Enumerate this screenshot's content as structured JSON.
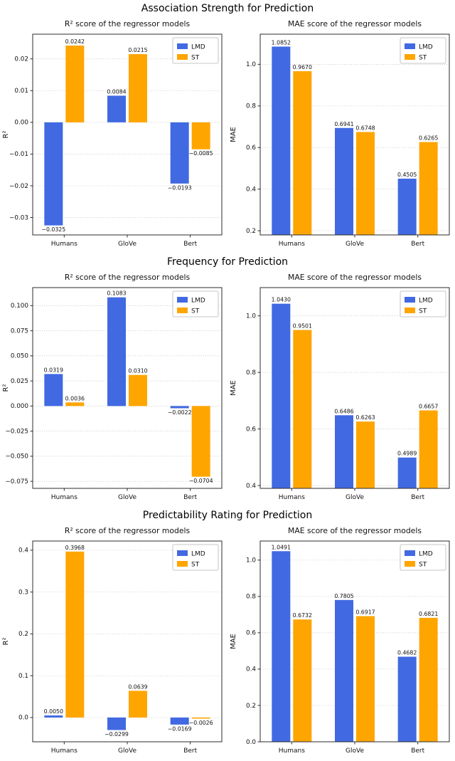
{
  "rows": [
    {
      "title": "Association Strength for Prediction"
    },
    {
      "title": "Frequency for Prediction"
    },
    {
      "title": "Predictability Rating for Prediction"
    }
  ],
  "legend": {
    "entries": [
      "LMD",
      "ST"
    ],
    "position": "upper right"
  },
  "colors": {
    "LMD": "#4169e1",
    "ST": "#ffa500"
  },
  "chart_data": [
    {
      "type": "bar",
      "row_title": "Association Strength for Prediction",
      "title": "R² score of the regressor models",
      "ylabel": "R²",
      "categories": [
        "Humans",
        "GloVe",
        "Bert"
      ],
      "series": [
        {
          "name": "LMD",
          "color": "#4169e1",
          "values": [
            -0.0325,
            0.0084,
            -0.0193
          ]
        },
        {
          "name": "ST",
          "color": "#ffa500",
          "values": [
            0.0242,
            0.0215,
            -0.0085
          ]
        }
      ],
      "ylim": [
        -0.0355,
        0.0278
      ],
      "yticks": [
        0.02,
        0.01,
        0.0,
        -0.01,
        -0.02,
        -0.03
      ],
      "ytick_labels": [
        "0.02",
        "0.01",
        "0.00",
        "−0.01",
        "−0.02",
        "−0.03"
      ],
      "grid": "dotted-horizontal",
      "legend_position": "upper right"
    },
    {
      "type": "bar",
      "row_title": "Association Strength for Prediction",
      "title": "MAE score of the regressor models",
      "ylabel": "MAE",
      "categories": [
        "Humans",
        "GloVe",
        "Bert"
      ],
      "series": [
        {
          "name": "LMD",
          "color": "#4169e1",
          "values": [
            1.0852,
            0.6941,
            0.4505
          ]
        },
        {
          "name": "ST",
          "color": "#ffa500",
          "values": [
            0.967,
            0.6748,
            0.6265
          ]
        }
      ],
      "ylim": [
        0.18,
        1.145
      ],
      "yticks": [
        1.0,
        0.8,
        0.6,
        0.4,
        0.2
      ],
      "ytick_labels": [
        "1.0",
        "0.8",
        "0.6",
        "0.4",
        "0.2"
      ],
      "grid": "dotted-horizontal",
      "legend_position": "upper right"
    },
    {
      "type": "bar",
      "row_title": "Frequency for Prediction",
      "title": "R² score of the regressor models",
      "ylabel": "R²",
      "categories": [
        "Humans",
        "GloVe",
        "Bert"
      ],
      "series": [
        {
          "name": "LMD",
          "color": "#4169e1",
          "values": [
            0.0319,
            0.1083,
            -0.0022
          ]
        },
        {
          "name": "ST",
          "color": "#ffa500",
          "values": [
            0.0036,
            0.031,
            -0.0704
          ]
        }
      ],
      "ylim": [
        -0.082,
        0.118
      ],
      "yticks": [
        0.1,
        0.075,
        0.05,
        0.025,
        0.0,
        -0.025,
        -0.05,
        -0.075
      ],
      "ytick_labels": [
        "0.100",
        "0.075",
        "0.050",
        "0.025",
        "0.000",
        "−0.025",
        "−0.050",
        "−0.075"
      ],
      "grid": "dotted-horizontal",
      "legend_position": "upper right"
    },
    {
      "type": "bar",
      "row_title": "Frequency for Prediction",
      "title": "MAE score of the regressor models",
      "ylabel": "MAE",
      "categories": [
        "Humans",
        "GloVe",
        "Bert"
      ],
      "series": [
        {
          "name": "LMD",
          "color": "#4169e1",
          "values": [
            1.043,
            0.6486,
            0.4989
          ]
        },
        {
          "name": "ST",
          "color": "#ffa500",
          "values": [
            0.9501,
            0.6263,
            0.6657
          ]
        }
      ],
      "ylim": [
        0.39,
        1.1
      ],
      "yticks": [
        1.0,
        0.8,
        0.6,
        0.4
      ],
      "ytick_labels": [
        "1.0",
        "0.8",
        "0.6",
        "0.4"
      ],
      "grid": "dotted-horizontal",
      "legend_position": "upper right"
    },
    {
      "type": "bar",
      "row_title": "Predictability Rating for Prediction",
      "title": "R² score of the regressor models",
      "ylabel": "R²",
      "categories": [
        "Humans",
        "GloVe",
        "Bert"
      ],
      "series": [
        {
          "name": "LMD",
          "color": "#4169e1",
          "values": [
            0.005,
            -0.0299,
            -0.0169
          ]
        },
        {
          "name": "ST",
          "color": "#ffa500",
          "values": [
            0.3968,
            0.0639,
            -0.0026
          ]
        }
      ],
      "ylim": [
        -0.058,
        0.422
      ],
      "yticks": [
        0.4,
        0.3,
        0.2,
        0.1,
        0.0
      ],
      "ytick_labels": [
        "0.4",
        "0.3",
        "0.2",
        "0.1",
        "0.0"
      ],
      "grid": "dotted-horizontal",
      "legend_position": "upper right"
    },
    {
      "type": "bar",
      "row_title": "Predictability Rating for Prediction",
      "title": "MAE score of the regressor models",
      "ylabel": "MAE",
      "categories": [
        "Humans",
        "GloVe",
        "Bert"
      ],
      "series": [
        {
          "name": "LMD",
          "color": "#4169e1",
          "values": [
            1.0491,
            0.7805,
            0.4682
          ]
        },
        {
          "name": "ST",
          "color": "#ffa500",
          "values": [
            0.6732,
            0.6917,
            0.6821
          ]
        }
      ],
      "ylim": [
        0.0,
        1.105
      ],
      "yticks": [
        1.0,
        0.8,
        0.6,
        0.4,
        0.2,
        0.0
      ],
      "ytick_labels": [
        "1.0",
        "0.8",
        "0.6",
        "0.4",
        "0.2",
        "0.0"
      ],
      "grid": "dotted-horizontal",
      "legend_position": "upper right"
    }
  ]
}
